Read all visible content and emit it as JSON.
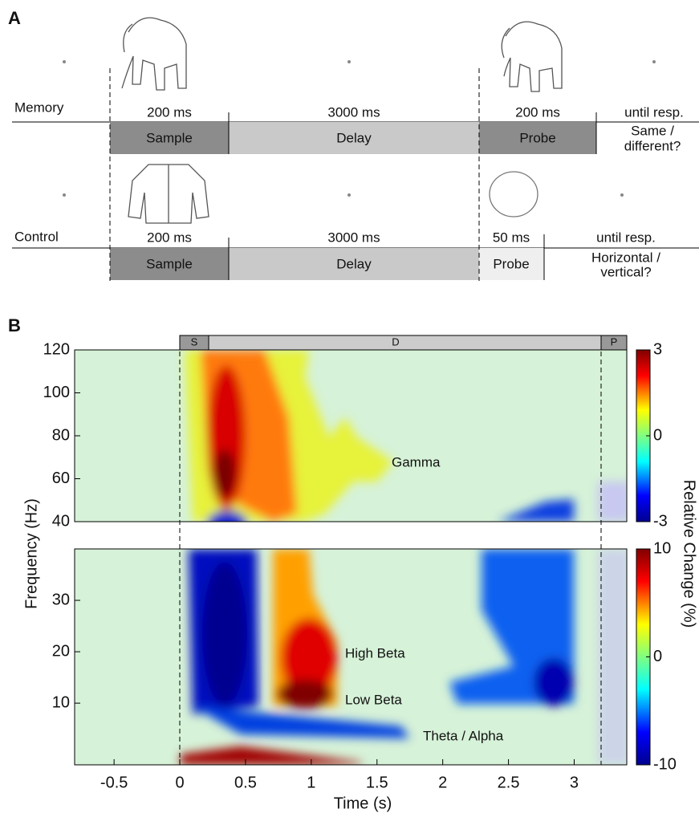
{
  "panel_a": {
    "label": "A",
    "memory": {
      "name": "Memory",
      "durations": [
        "200 ms",
        "3000 ms",
        "200 ms",
        "until resp."
      ],
      "phases": [
        "Sample",
        "Delay",
        "Probe"
      ],
      "response": [
        "Same /",
        "different?"
      ]
    },
    "control": {
      "name": "Control",
      "durations": [
        "200 ms",
        "3000 ms",
        "50 ms",
        "until resp."
      ],
      "phases": [
        "Sample",
        "Delay",
        "Probe"
      ],
      "response": [
        "Horizontal /",
        "vertical?"
      ]
    }
  },
  "panel_b": {
    "label": "B",
    "phases": [
      "S",
      "D",
      "P"
    ],
    "xlabel": "Time (s)",
    "ylabel": "Frequency (Hz)",
    "colorbar_label": "Relative Change (%)",
    "xlim": [
      -0.8,
      3.4
    ],
    "xticks": [
      -0.5,
      0,
      0.5,
      1,
      1.5,
      2,
      2.5,
      3
    ],
    "top": {
      "ylim": [
        40,
        120
      ],
      "yticks": [
        40,
        60,
        80,
        100,
        120
      ],
      "clim": [
        -3,
        3
      ],
      "cticks": [
        -3,
        0,
        3
      ]
    },
    "bottom": {
      "ylim": [
        -2,
        40
      ],
      "yticks": [
        10,
        20,
        30
      ],
      "clim": [
        -10,
        10
      ],
      "cticks": [
        -10,
        0,
        10
      ]
    },
    "annotations": [
      "Gamma",
      "High Beta",
      "Low Beta",
      "Theta / Alpha"
    ]
  }
}
